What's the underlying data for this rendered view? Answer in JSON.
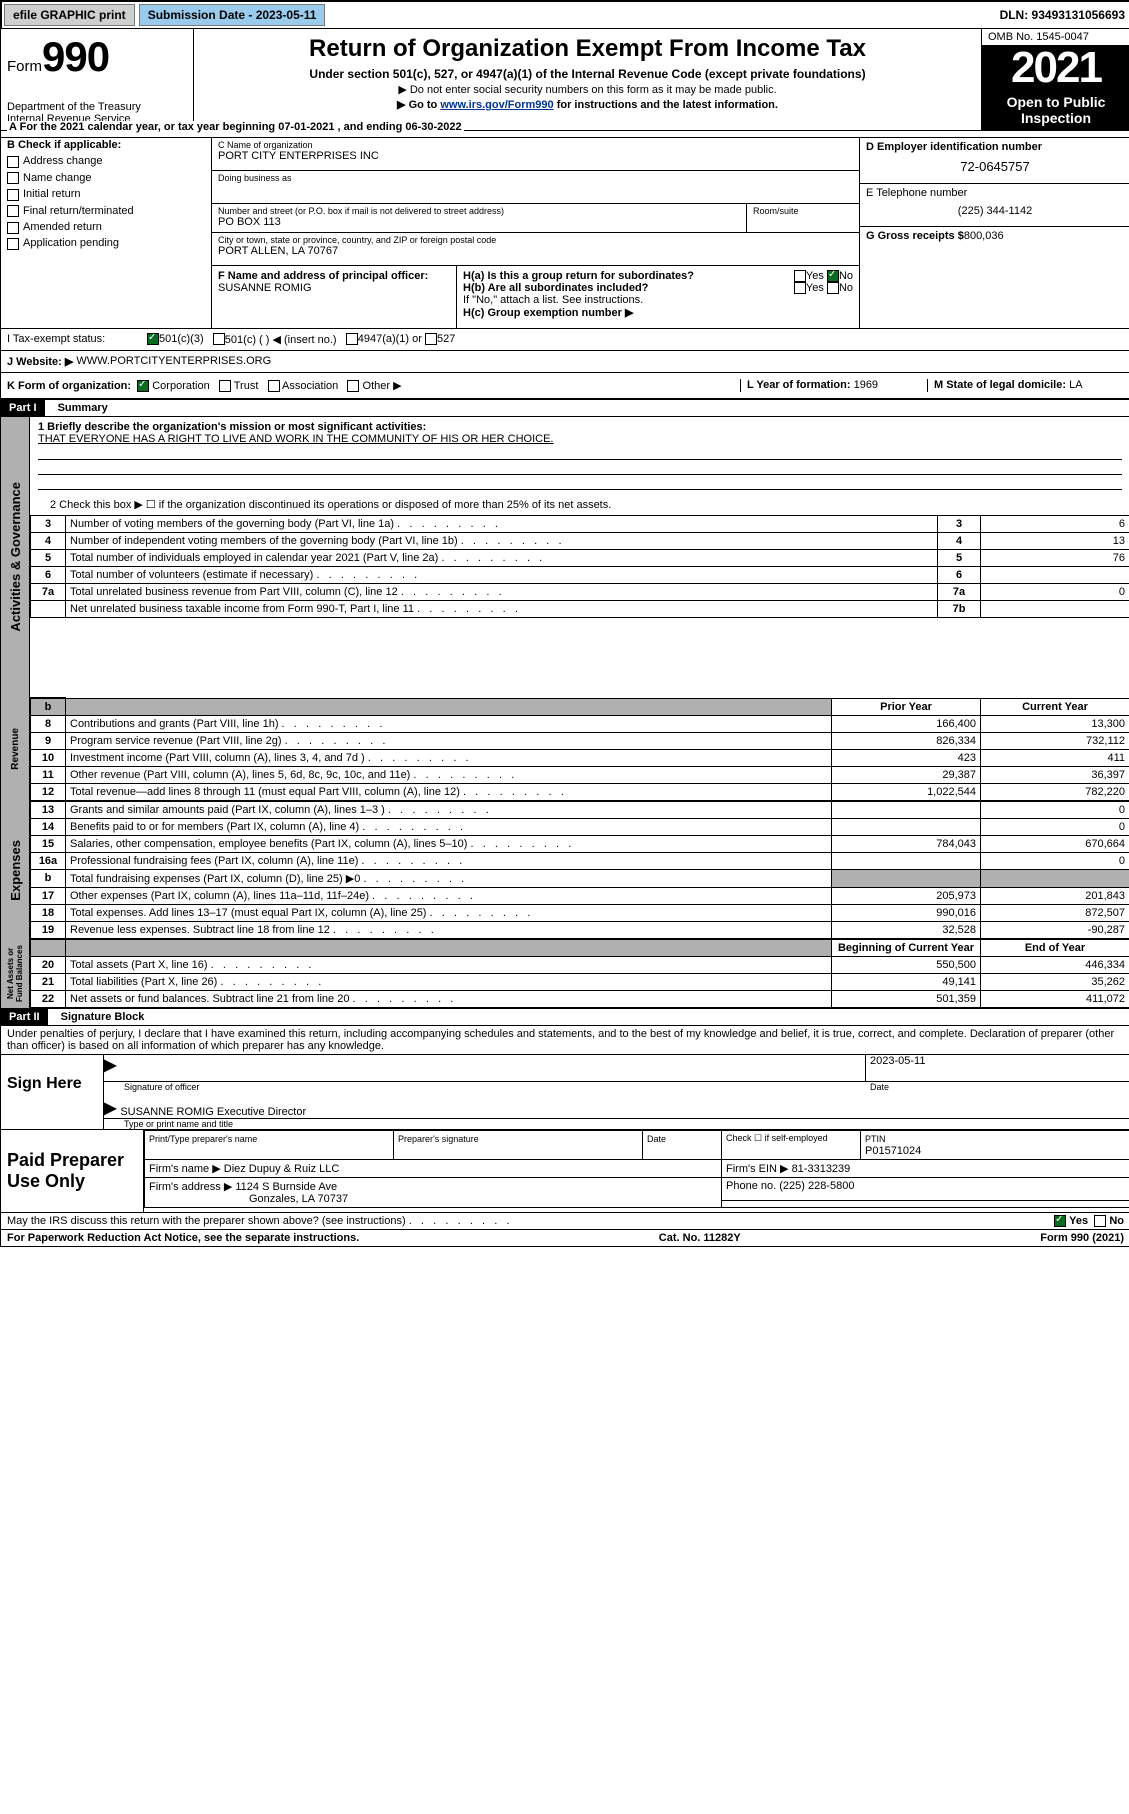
{
  "topbar": {
    "efile": "efile GRAPHIC print",
    "subdate_label": "Submission Date - 2023-05-11",
    "dln": "DLN: 93493131056693"
  },
  "header": {
    "form_prefix": "Form",
    "form_number": "990",
    "dept": "Department of the Treasury",
    "irs": "Internal Revenue Service",
    "title": "Return of Organization Exempt From Income Tax",
    "sub1": "Under section 501(c), 527, or 4947(a)(1) of the Internal Revenue Code (except private foundations)",
    "sub2": "▶ Do not enter social security numbers on this form as it may be made public.",
    "sub3_pre": "▶ Go to ",
    "sub3_link": "www.irs.gov/Form990",
    "sub3_post": " for instructions and the latest information.",
    "omb": "OMB No. 1545-0047",
    "year": "2021",
    "open1": "Open to Public",
    "open2": "Inspection"
  },
  "line_a": "For the 2021 calendar year, or tax year beginning 07-01-2021   , and ending 06-30-2022",
  "sectionB": {
    "heading": "B Check if applicable:",
    "items": [
      "Address change",
      "Name change",
      "Initial return",
      "Final return/terminated",
      "Amended return",
      "Application pending"
    ]
  },
  "sectionC": {
    "name_label": "C Name of organization",
    "name": "PORT CITY ENTERPRISES INC",
    "dba_label": "Doing business as",
    "street_label": "Number and street (or P.O. box if mail is not delivered to street address)",
    "room_label": "Room/suite",
    "street": "PO BOX 113",
    "city_label": "City or town, state or province, country, and ZIP or foreign postal code",
    "city": "PORT ALLEN, LA   70767",
    "officer_label": "F  Name and address of principal officer:",
    "officer": "SUSANNE ROMIG"
  },
  "sectionD": {
    "ein_label": "D Employer identification number",
    "ein": "72-0645757",
    "tel_label": "E Telephone number",
    "tel": "(225) 344-1142",
    "gross_label": "G Gross receipts $",
    "gross": "800,036",
    "ha_label": "H(a)  Is this a group return for subordinates?",
    "hb_label": "H(b)  Are all subordinates included?",
    "hb_note": "If \"No,\" attach a list. See instructions.",
    "hc_label": "H(c)  Group exemption number ▶",
    "yes": "Yes",
    "no": "No"
  },
  "line_i": {
    "label": "I   Tax-exempt status:",
    "opts": [
      "501(c)(3)",
      "501(c) (  ) ◀ (insert no.)",
      "4947(a)(1) or",
      "527"
    ]
  },
  "line_j": {
    "label": "J   Website: ▶",
    "value": "WWW.PORTCITYENTERPRISES.ORG"
  },
  "line_k": {
    "label": "K Form of organization:",
    "opts": [
      "Corporation",
      "Trust",
      "Association",
      "Other ▶"
    ]
  },
  "line_l": {
    "label": "L Year of formation:",
    "value": "1969"
  },
  "line_m": {
    "label": "M State of legal domicile:",
    "value": "LA"
  },
  "part1": {
    "header": "Part I",
    "title": "Summary",
    "mission_label": "1  Briefly describe the organization's mission or most significant activities:",
    "mission": "THAT EVERYONE HAS A RIGHT TO LIVE AND WORK IN THE COMMUNITY OF HIS OR HER CHOICE.",
    "l2": "2   Check this box ▶ ☐  if the organization discontinued its operations or disposed of more than 25% of its net assets.",
    "columns": {
      "prior": "Prior Year",
      "current": "Current Year",
      "begin": "Beginning of Current Year",
      "end": "End of Year"
    }
  },
  "rows_gov": [
    {
      "n": "3",
      "t": "Number of voting members of the governing body (Part VI, line 1a)",
      "k": "3",
      "v": "6"
    },
    {
      "n": "4",
      "t": "Number of independent voting members of the governing body (Part VI, line 1b)",
      "k": "4",
      "v": "13"
    },
    {
      "n": "5",
      "t": "Total number of individuals employed in calendar year 2021 (Part V, line 2a)",
      "k": "5",
      "v": "76"
    },
    {
      "n": "6",
      "t": "Total number of volunteers (estimate if necessary)",
      "k": "6",
      "v": ""
    },
    {
      "n": "7a",
      "t": "Total unrelated business revenue from Part VIII, column (C), line 12",
      "k": "7a",
      "v": "0"
    },
    {
      "n": "",
      "t": "Net unrelated business taxable income from Form 990-T, Part I, line 11",
      "k": "7b",
      "v": ""
    }
  ],
  "rows_rev": [
    {
      "n": "8",
      "t": "Contributions and grants (Part VIII, line 1h)",
      "p": "166,400",
      "c": "13,300"
    },
    {
      "n": "9",
      "t": "Program service revenue (Part VIII, line 2g)",
      "p": "826,334",
      "c": "732,112"
    },
    {
      "n": "10",
      "t": "Investment income (Part VIII, column (A), lines 3, 4, and 7d )",
      "p": "423",
      "c": "411"
    },
    {
      "n": "11",
      "t": "Other revenue (Part VIII, column (A), lines 5, 6d, 8c, 9c, 10c, and 11e)",
      "p": "29,387",
      "c": "36,397"
    },
    {
      "n": "12",
      "t": "Total revenue—add lines 8 through 11 (must equal Part VIII, column (A), line 12)",
      "p": "1,022,544",
      "c": "782,220"
    }
  ],
  "rows_exp": [
    {
      "n": "13",
      "t": "Grants and similar amounts paid (Part IX, column (A), lines 1–3 )",
      "p": "",
      "c": "0"
    },
    {
      "n": "14",
      "t": "Benefits paid to or for members (Part IX, column (A), line 4)",
      "p": "",
      "c": "0"
    },
    {
      "n": "15",
      "t": "Salaries, other compensation, employee benefits (Part IX, column (A), lines 5–10)",
      "p": "784,043",
      "c": "670,664"
    },
    {
      "n": "16a",
      "t": "Professional fundraising fees (Part IX, column (A), line 11e)",
      "p": "",
      "c": "0"
    },
    {
      "n": "b",
      "t": "Total fundraising expenses (Part IX, column (D), line 25) ▶0",
      "p": "SHADE",
      "c": "SHADE"
    },
    {
      "n": "17",
      "t": "Other expenses (Part IX, column (A), lines 11a–11d, 11f–24e)",
      "p": "205,973",
      "c": "201,843"
    },
    {
      "n": "18",
      "t": "Total expenses. Add lines 13–17 (must equal Part IX, column (A), line 25)",
      "p": "990,016",
      "c": "872,507"
    },
    {
      "n": "19",
      "t": "Revenue less expenses. Subtract line 18 from line 12",
      "p": "32,528",
      "c": "-90,287"
    }
  ],
  "rows_net": [
    {
      "n": "20",
      "t": "Total assets (Part X, line 16)",
      "p": "550,500",
      "c": "446,334"
    },
    {
      "n": "21",
      "t": "Total liabilities (Part X, line 26)",
      "p": "49,141",
      "c": "35,262"
    },
    {
      "n": "22",
      "t": "Net assets or fund balances. Subtract line 21 from line 20",
      "p": "501,359",
      "c": "411,072"
    }
  ],
  "vtabs": {
    "gov": "Activities & Governance",
    "rev": "Revenue",
    "exp": "Expenses",
    "net": "Net Assets or Fund Balances"
  },
  "part2": {
    "header": "Part II",
    "title": "Signature Block",
    "penalties": "Under penalties of perjury, I declare that I have examined this return, including accompanying schedules and statements, and to the best of my knowledge and belief, it is true, correct, and complete. Declaration of preparer (other than officer) is based on all information of which preparer has any knowledge.",
    "sign_here": "Sign Here",
    "sig_officer": "Signature of officer",
    "date": "Date",
    "sig_date": "2023-05-11",
    "officer_name": "SUSANNE ROMIG  Executive Director",
    "officer_name_label": "Type or print name and title",
    "paid": "Paid Preparer Use Only",
    "prep_name_label": "Print/Type preparer's name",
    "prep_sig_label": "Preparer's signature",
    "check_self": "Check ☐ if self-employed",
    "ptin_label": "PTIN",
    "ptin": "P01571024",
    "firm_name_label": "Firm's name    ▶",
    "firm_name": "Diez Dupuy & Ruiz LLC",
    "firm_ein_label": "Firm's EIN ▶",
    "firm_ein": "81-3313239",
    "firm_addr_label": "Firm's address ▶",
    "firm_addr1": "1124 S Burnside Ave",
    "firm_addr2": "Gonzales, LA  70737",
    "phone_label": "Phone no.",
    "phone": "(225) 228-5800",
    "discuss": "May the IRS discuss this return with the preparer shown above? (see instructions)"
  },
  "footer": {
    "left": "For Paperwork Reduction Act Notice, see the separate instructions.",
    "mid": "Cat. No. 11282Y",
    "right": "Form 990 (2021)"
  }
}
